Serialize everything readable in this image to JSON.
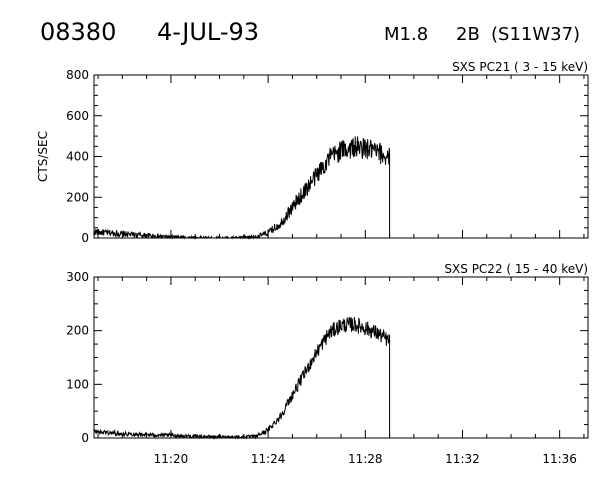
{
  "header": {
    "event_id": "08380",
    "date": "4-JUL-93",
    "flare_class": "M1.8",
    "optical_class": "2B",
    "location": "(S11W37)"
  },
  "chart_data": [
    {
      "type": "line",
      "panel_label": "SXS PC21  (  3 - 15 keV)",
      "ylabel": "CTS/SEC",
      "xlim": [
        "11:16:50",
        "11:37:10"
      ],
      "ylim": [
        0,
        800
      ],
      "yticks": [
        0,
        200,
        400,
        600,
        800
      ],
      "xticks": [
        "11:20",
        "11:24",
        "11:28",
        "11:32",
        "11:36"
      ],
      "series": [
        {
          "x": [
            "11:16:50",
            "11:18:00",
            "11:19:00",
            "11:20:00",
            "11:21:00",
            "11:22:00",
            "11:23:00",
            "11:23:30",
            "11:24:00",
            "11:24:30",
            "11:25:00",
            "11:25:30",
            "11:26:00",
            "11:26:30",
            "11:27:00",
            "11:27:30",
            "11:28:00",
            "11:28:30",
            "11:29:00"
          ],
          "values": [
            30,
            20,
            12,
            5,
            2,
            0,
            2,
            5,
            25,
            70,
            150,
            230,
            310,
            390,
            430,
            445,
            440,
            420,
            395
          ]
        }
      ],
      "data_end": "11:29:00"
    },
    {
      "type": "line",
      "panel_label": "SXS PC22  ( 15 - 40 keV)",
      "ylabel": "",
      "xlim": [
        "11:16:50",
        "11:37:10"
      ],
      "ylim": [
        0,
        300
      ],
      "yticks": [
        0,
        100,
        200,
        300
      ],
      "xticks": [
        "11:20",
        "11:24",
        "11:28",
        "11:32",
        "11:36"
      ],
      "series": [
        {
          "x": [
            "11:16:50",
            "11:18:00",
            "11:19:00",
            "11:20:00",
            "11:21:00",
            "11:22:00",
            "11:23:00",
            "11:23:30",
            "11:24:00",
            "11:24:30",
            "11:25:00",
            "11:25:30",
            "11:26:00",
            "11:26:30",
            "11:27:00",
            "11:27:30",
            "11:28:00",
            "11:28:30",
            "11:29:00"
          ],
          "values": [
            12,
            8,
            6,
            5,
            3,
            2,
            2,
            3,
            15,
            40,
            80,
            120,
            160,
            195,
            210,
            212,
            205,
            195,
            180
          ]
        }
      ],
      "data_end": "11:29:00"
    }
  ]
}
